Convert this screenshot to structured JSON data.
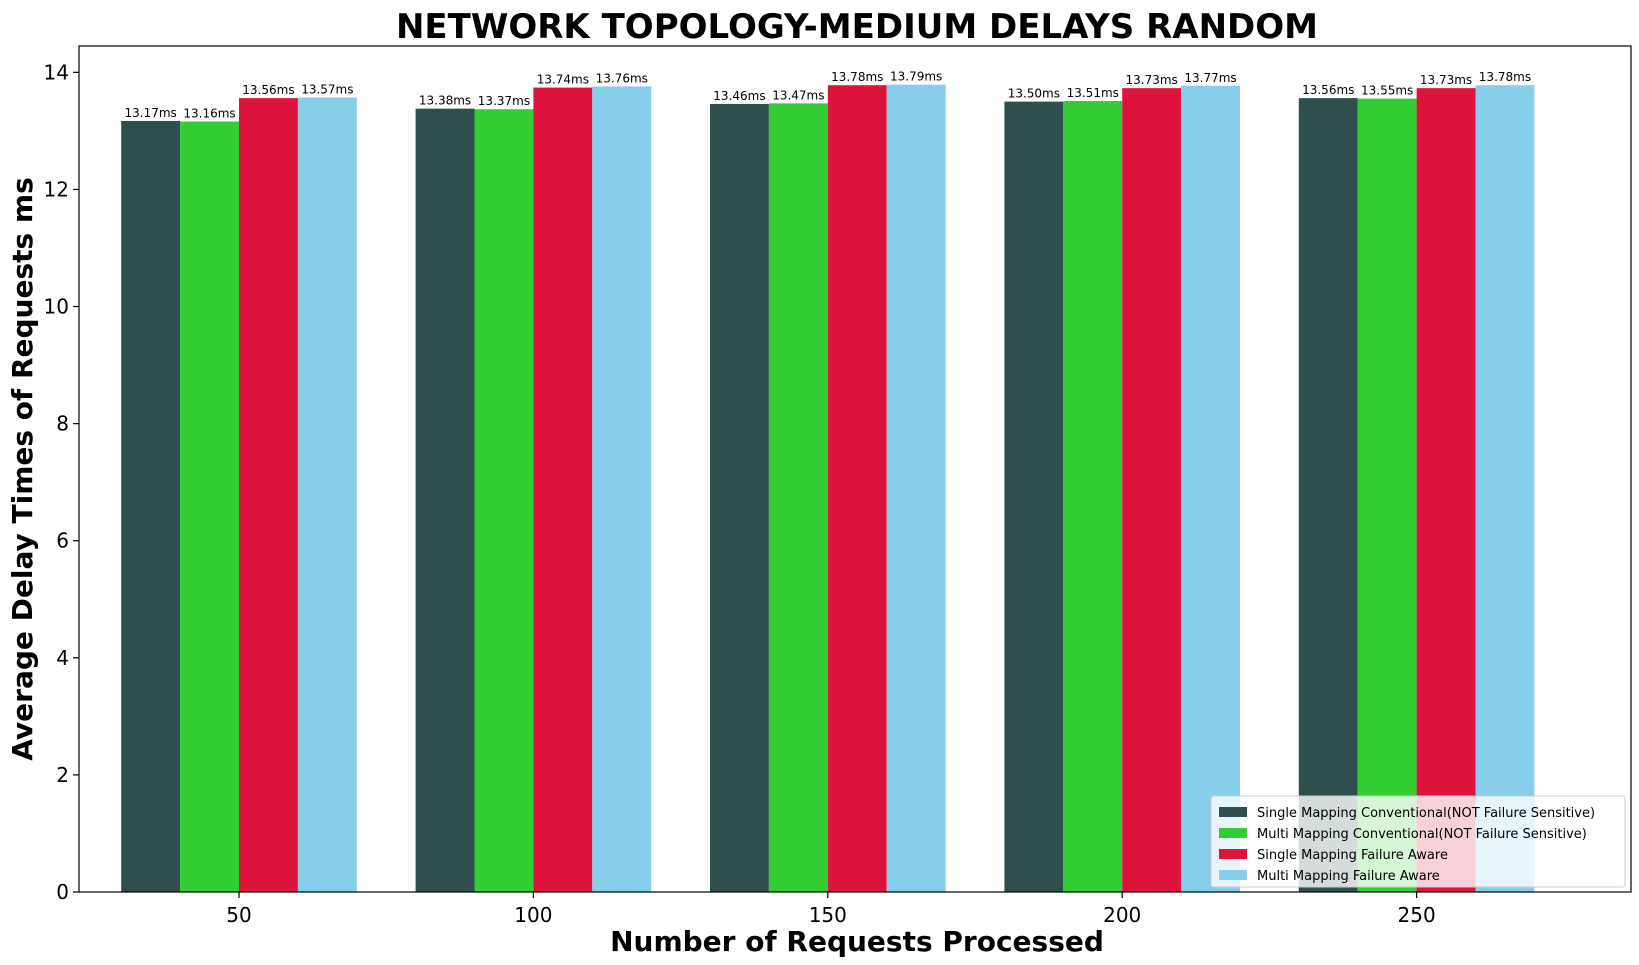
{
  "chart_data": {
    "type": "bar",
    "title": "NETWORK TOPOLOGY-MEDIUM DELAYS RANDOM",
    "xlabel": "Number of Requests Processed",
    "ylabel": "Average Delay Times of Requests ms",
    "categories": [
      "50",
      "100",
      "150",
      "200",
      "250"
    ],
    "ylim": [
      0,
      14.45
    ],
    "yticks": [
      0,
      2,
      4,
      6,
      8,
      10,
      12,
      14
    ],
    "grid": false,
    "legend_position": "bottom-right",
    "value_suffix": "ms",
    "series": [
      {
        "name": "Single Mapping Conventional(NOT Failure Sensitive)",
        "color": "#2f4f4f",
        "values": [
          13.17,
          13.38,
          13.46,
          13.5,
          13.56
        ]
      },
      {
        "name": "Multi Mapping Conventional(NOT Failure Sensitive)",
        "color": "#32cd32",
        "values": [
          13.16,
          13.37,
          13.47,
          13.51,
          13.55
        ]
      },
      {
        "name": "Single Mapping Failure Aware",
        "color": "#dc143c",
        "values": [
          13.56,
          13.74,
          13.78,
          13.73,
          13.73
        ]
      },
      {
        "name": "Multi Mapping Failure Aware",
        "color": "#87ceeb",
        "values": [
          13.57,
          13.76,
          13.79,
          13.77,
          13.78
        ]
      }
    ]
  }
}
